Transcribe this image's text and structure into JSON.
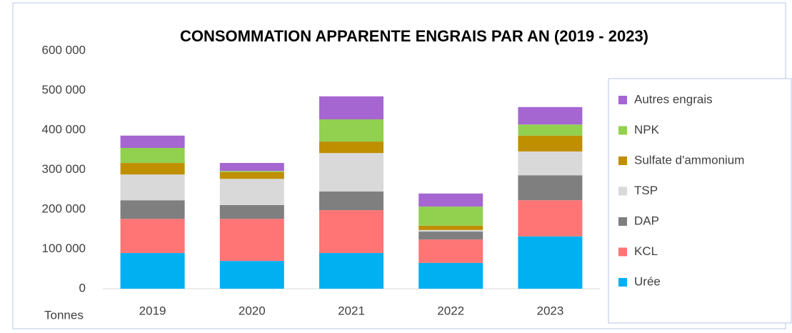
{
  "chart_data": {
    "type": "stacked_bar",
    "title": "CONSOMMATION APPARENTE ENGRAIS PAR AN (2019 - 2023)",
    "y_axis_label": "Tonnes",
    "categories": [
      "2019",
      "2020",
      "2021",
      "2022",
      "2023"
    ],
    "series": [
      {
        "name": "Urée",
        "color": "#00b0f0",
        "values": [
          90000,
          70000,
          90000,
          65000,
          132000
        ]
      },
      {
        "name": "KCL",
        "color": "#ff7575",
        "values": [
          86000,
          106000,
          108000,
          59000,
          91000
        ]
      },
      {
        "name": "DAP",
        "color": "#7f7f7f",
        "values": [
          47000,
          35000,
          47000,
          20000,
          63000
        ]
      },
      {
        "name": "TSP",
        "color": "#d9d9d9",
        "values": [
          65000,
          66000,
          97000,
          4000,
          60000
        ]
      },
      {
        "name": "Sulfate d'ammonium",
        "color": "#bf8f00",
        "values": [
          29000,
          17000,
          29000,
          11000,
          40000
        ]
      },
      {
        "name": "NPK",
        "color": "#92d050",
        "values": [
          38000,
          3000,
          56000,
          48000,
          28000
        ]
      },
      {
        "name": "Autres engrais",
        "color": "#a566d1",
        "values": [
          31000,
          20000,
          58000,
          33000,
          44000
        ]
      }
    ],
    "ylim": [
      0,
      600000
    ],
    "yticks": [
      0,
      {
        "value": 100000,
        "label": "100 000"
      },
      {
        "value": 200000,
        "label": "200 000"
      },
      {
        "value": 300000,
        "label": "300 000"
      },
      {
        "value": 400000,
        "label": "400 000"
      },
      {
        "value": 500000,
        "label": "500 000"
      },
      {
        "value": 600000,
        "label": "600 000"
      }
    ],
    "legend": "right"
  }
}
